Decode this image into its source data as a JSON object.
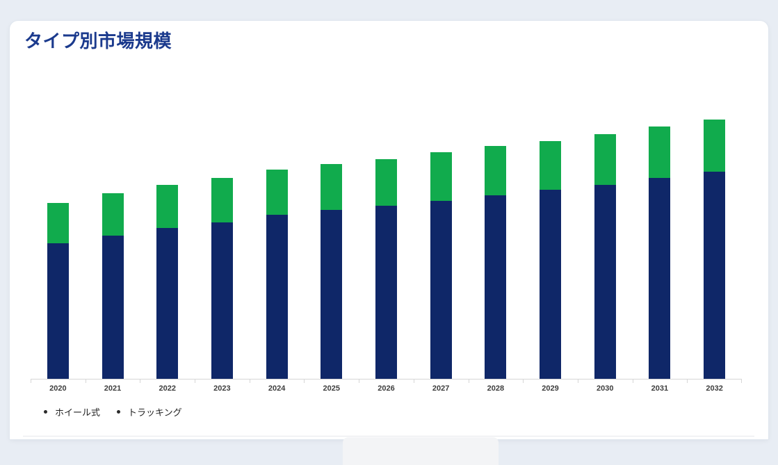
{
  "header": {
    "title": "タイプ別市場規模"
  },
  "chart_data": {
    "type": "bar",
    "stacked": true,
    "title": "タイプ別市場規模",
    "categories": [
      "2020",
      "2021",
      "2022",
      "2023",
      "2024",
      "2025",
      "2026",
      "2027",
      "2028",
      "2029",
      "2030",
      "2031",
      "2032"
    ],
    "series": [
      {
        "name": "ホイール式",
        "color": "#0F2768",
        "values": [
          195,
          206,
          217,
          225,
          236,
          243,
          249,
          256,
          264,
          272,
          279,
          289,
          298
        ]
      },
      {
        "name": "トラッキング",
        "color": "#11AB4D",
        "values": [
          58,
          61,
          62,
          64,
          65,
          66,
          67,
          70,
          71,
          70,
          73,
          74,
          75
        ]
      }
    ],
    "stack_totals": [
      253,
      267,
      279,
      289,
      301,
      309,
      316,
      326,
      335,
      342,
      352,
      363,
      373
    ],
    "xlabel": "",
    "ylabel": "",
    "ylim": [
      0,
      438
    ],
    "value_unit": "relative height, px-estimated (y-axis unlabeled in source image)",
    "grid": false,
    "y_axis_visible": false,
    "legend_position": "bottom-left",
    "legend": [
      "ホイール式",
      "トラッキング"
    ]
  },
  "colors": {
    "page_background": "#E8EDF4",
    "card_background": "#FFFFFF",
    "title_text": "#1B3A8D",
    "series_wheel": "#0F2768",
    "series_tracking": "#11AB4D",
    "axis_line": "#D6D6D6",
    "axis_label_text": "#3D3D3D",
    "legend_bullet": "#2B2B2B",
    "legend_text": "#1F1F1F",
    "divider": "#E6E8EC"
  }
}
